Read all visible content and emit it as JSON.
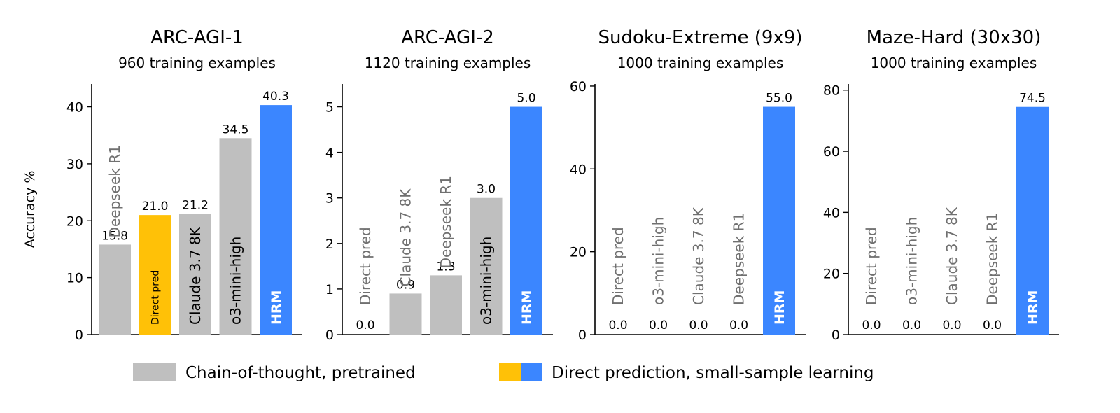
{
  "colors": {
    "cot": "#bfbfbf",
    "direct_small": "#ffc107",
    "hrm": "#3b86ff",
    "inside_label_gray": "#707070",
    "axis": "#000000"
  },
  "legend": {
    "position": "bottom-center",
    "items": [
      {
        "label": "Chain-of-thought, pretrained",
        "colors": [
          "#bfbfbf"
        ]
      },
      {
        "label": "Direct prediction, small-sample learning",
        "colors": [
          "#ffc107",
          "#3b86ff"
        ]
      }
    ]
  },
  "chart_data": [
    {
      "type": "bar",
      "title": "ARC-AGI-1",
      "subtitle": "960 training examples",
      "ylabel": "Accuracy %",
      "ylim": [
        0,
        44
      ],
      "yticks": [
        0,
        10,
        20,
        30,
        40
      ],
      "grid": false,
      "bars": [
        {
          "label": "Deepseek R1",
          "value": 15.8,
          "value_label": "15.8",
          "color": "#bfbfbf"
        },
        {
          "label": "Direct pred",
          "value": 21.0,
          "value_label": "21.0",
          "color": "#ffc107"
        },
        {
          "label": "Claude 3.7 8K",
          "value": 21.2,
          "value_label": "21.2",
          "color": "#bfbfbf"
        },
        {
          "label": "o3-mini-high",
          "value": 34.5,
          "value_label": "34.5",
          "color": "#bfbfbf"
        },
        {
          "label": "HRM",
          "value": 40.3,
          "value_label": "40.3",
          "color": "#3b86ff"
        }
      ]
    },
    {
      "type": "bar",
      "title": "ARC-AGI-2",
      "subtitle": "1120 training examples",
      "ylabel": "",
      "ylim": [
        0,
        5.5
      ],
      "yticks": [
        0,
        1,
        2,
        3,
        4,
        5
      ],
      "grid": false,
      "bars": [
        {
          "label": "Direct pred",
          "value": 0.0,
          "value_label": "0.0",
          "color": "#ffc107"
        },
        {
          "label": "Claude 3.7 8K",
          "value": 0.9,
          "value_label": "0.9",
          "color": "#bfbfbf"
        },
        {
          "label": "Deepseek R1",
          "value": 1.3,
          "value_label": "1.3",
          "color": "#bfbfbf"
        },
        {
          "label": "o3-mini-high",
          "value": 3.0,
          "value_label": "3.0",
          "color": "#bfbfbf"
        },
        {
          "label": "HRM",
          "value": 5.0,
          "value_label": "5.0",
          "color": "#3b86ff"
        }
      ]
    },
    {
      "type": "bar",
      "title": "Sudoku-Extreme (9x9)",
      "subtitle": "1000 training examples",
      "ylabel": "",
      "ylim": [
        0,
        60.5
      ],
      "yticks": [
        0,
        20,
        40,
        60
      ],
      "grid": false,
      "bars": [
        {
          "label": "Direct pred",
          "value": 0.0,
          "value_label": "0.0",
          "color": "#ffc107"
        },
        {
          "label": "o3-mini-high",
          "value": 0.0,
          "value_label": "0.0",
          "color": "#bfbfbf"
        },
        {
          "label": "Claude 3.7 8K",
          "value": 0.0,
          "value_label": "0.0",
          "color": "#bfbfbf"
        },
        {
          "label": "Deepseek R1",
          "value": 0.0,
          "value_label": "0.0",
          "color": "#bfbfbf"
        },
        {
          "label": "HRM",
          "value": 55.0,
          "value_label": "55.0",
          "color": "#3b86ff"
        }
      ]
    },
    {
      "type": "bar",
      "title": "Maze-Hard (30x30)",
      "subtitle": "1000 training examples",
      "ylabel": "",
      "ylim": [
        0,
        82
      ],
      "yticks": [
        0,
        20,
        40,
        60,
        80
      ],
      "grid": false,
      "bars": [
        {
          "label": "Direct pred",
          "value": 0.0,
          "value_label": "0.0",
          "color": "#ffc107"
        },
        {
          "label": "o3-mini-high",
          "value": 0.0,
          "value_label": "0.0",
          "color": "#bfbfbf"
        },
        {
          "label": "Claude 3.7 8K",
          "value": 0.0,
          "value_label": "0.0",
          "color": "#bfbfbf"
        },
        {
          "label": "Deepseek R1",
          "value": 0.0,
          "value_label": "0.0",
          "color": "#bfbfbf"
        },
        {
          "label": "HRM",
          "value": 74.5,
          "value_label": "74.5",
          "color": "#3b86ff"
        }
      ]
    }
  ]
}
